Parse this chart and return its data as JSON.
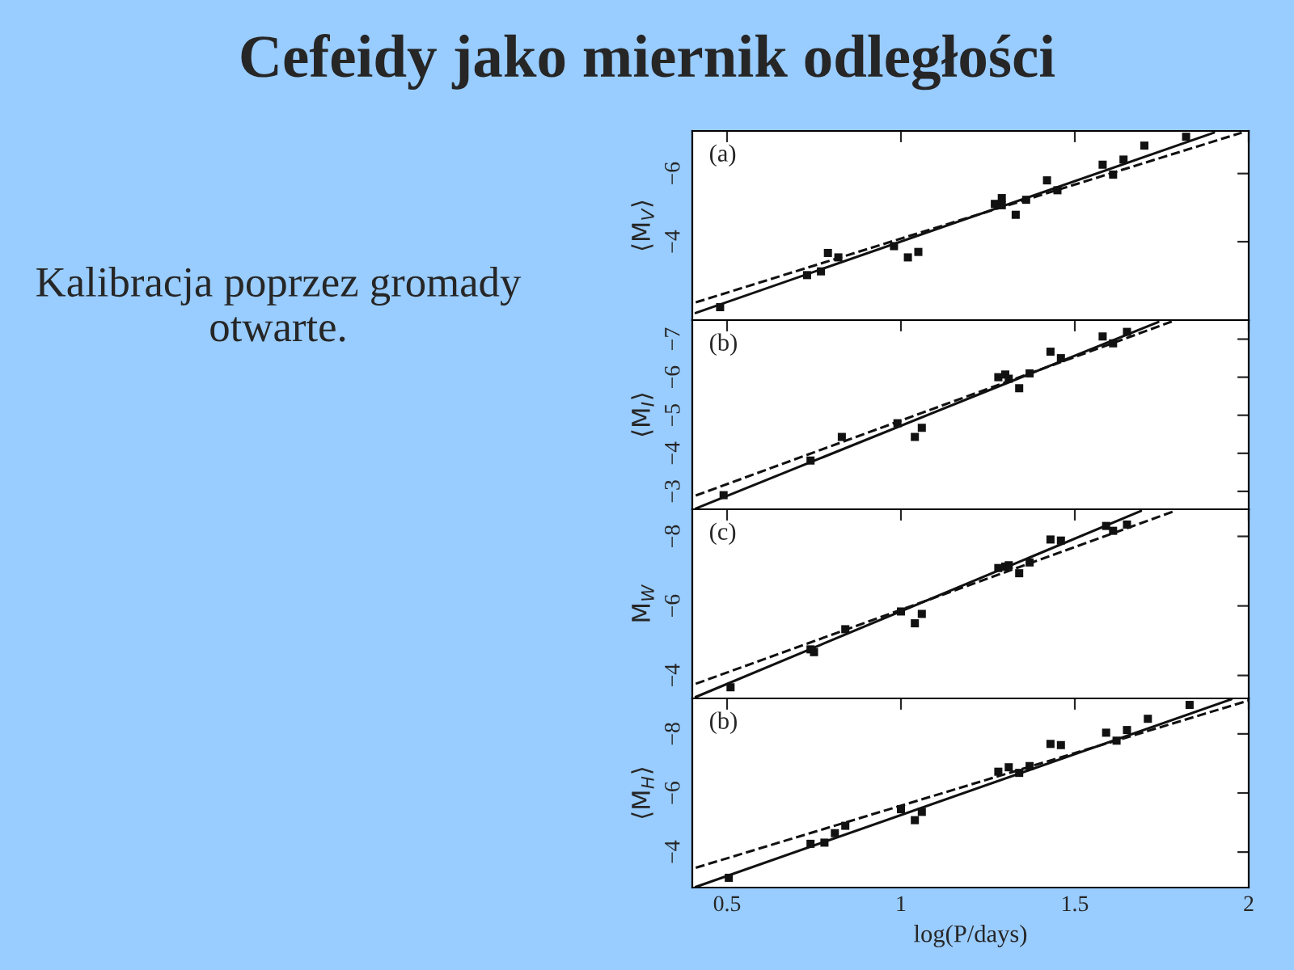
{
  "chart_data": [
    {
      "type": "scatter",
      "title": "Cefeidy jako miernik odległości",
      "annotations": [
        "Kalibracja poprzez gromady otwarte.",
        "(a)"
      ],
      "ylabel": "⟨M$_{V}$⟩",
      "xlim": [
        0.4,
        2.0
      ],
      "xticks": [
        0.5,
        1,
        1.5,
        2
      ],
      "ylim": [
        -1.7,
        -7.25
      ],
      "yticks": [
        -4,
        -6
      ],
      "tick_labels": "y",
      "grid": false,
      "series": [
        {
          "marker": "square",
          "color": "#111111",
          "x": [
            0.48,
            0.73,
            0.77,
            0.79,
            0.82,
            0.98,
            1.02,
            1.05,
            1.27,
            1.29,
            1.29,
            1.33,
            1.36,
            1.42,
            1.45,
            1.58,
            1.61,
            1.64,
            1.7,
            1.82
          ],
          "values": [
            -2.08,
            -3.02,
            -3.13,
            -3.67,
            -3.54,
            -3.87,
            -3.54,
            -3.7,
            -5.11,
            -5.28,
            -5.07,
            -4.79,
            -5.23,
            -5.8,
            -5.51,
            -6.26,
            -5.97,
            -6.41,
            -6.82,
            -7.08
          ]
        },
        {
          "type": "line",
          "marker": "none",
          "line_style": "solid",
          "color": "#111111",
          "x": [
            0.41,
            1.9
          ],
          "values": [
            -1.91,
            -7.2
          ]
        },
        {
          "type": "line",
          "marker": "none",
          "line_style": "dashed",
          "color": "#111111",
          "x": [
            0.41,
            1.98
          ],
          "values": [
            -2.22,
            -7.2
          ]
        }
      ]
    },
    {
      "type": "scatter",
      "annotations": [
        "(b)"
      ],
      "ylabel": "⟨M$_{I}$⟩",
      "xlim": [
        0.4,
        2.0
      ],
      "xticks": [
        0.5,
        1,
        1.5,
        2
      ],
      "ylim": [
        -2.53,
        -7.5
      ],
      "yticks": [
        -3,
        -4,
        -5,
        -6,
        -7
      ],
      "tick_labels": "y",
      "grid": false,
      "series": [
        {
          "marker": "square",
          "color": "#111111",
          "x": [
            0.49,
            0.74,
            0.83,
            0.99,
            1.04,
            1.06,
            1.28,
            1.3,
            1.31,
            1.34,
            1.37,
            1.43,
            1.46,
            1.58,
            1.61,
            1.65
          ],
          "values": [
            -2.9,
            -3.81,
            -4.43,
            -4.79,
            -4.43,
            -4.67,
            -6.0,
            -6.07,
            -5.96,
            -5.71,
            -6.1,
            -6.67,
            -6.5,
            -7.07,
            -6.89,
            -7.19
          ]
        },
        {
          "type": "line",
          "marker": "none",
          "line_style": "solid",
          "color": "#111111",
          "x": [
            0.41,
            1.74
          ],
          "values": [
            -2.55,
            -7.45
          ]
        },
        {
          "type": "line",
          "marker": "none",
          "line_style": "dashed",
          "color": "#111111",
          "x": [
            0.41,
            1.79
          ],
          "values": [
            -2.89,
            -7.5
          ]
        }
      ]
    },
    {
      "type": "scatter",
      "annotations": [
        "(c)"
      ],
      "ylabel": "M$_{W}$",
      "xlim": [
        0.4,
        2.0
      ],
      "xticks": [
        0.5,
        1,
        1.5,
        2
      ],
      "ylim": [
        -3.34,
        -8.78
      ],
      "yticks": [
        -4,
        -6,
        -8
      ],
      "tick_labels": "y",
      "grid": false,
      "series": [
        {
          "marker": "square",
          "color": "#111111",
          "x": [
            0.51,
            0.74,
            0.75,
            0.84,
            1.0,
            1.04,
            1.06,
            1.28,
            1.3,
            1.31,
            1.34,
            1.37,
            1.43,
            1.46,
            1.59,
            1.61,
            1.65
          ],
          "values": [
            -3.66,
            -4.75,
            -4.67,
            -5.33,
            -5.84,
            -5.5,
            -5.77,
            -7.09,
            -7.13,
            -7.17,
            -6.94,
            -7.25,
            -7.91,
            -7.88,
            -8.3,
            -8.16,
            -8.34
          ]
        },
        {
          "type": "line",
          "marker": "none",
          "line_style": "solid",
          "color": "#111111",
          "x": [
            0.41,
            1.69
          ],
          "values": [
            -3.38,
            -8.73
          ]
        },
        {
          "type": "line",
          "marker": "none",
          "line_style": "dashed",
          "color": "#111111",
          "x": [
            0.41,
            1.79
          ],
          "values": [
            -3.76,
            -8.74
          ]
        }
      ]
    },
    {
      "type": "scatter",
      "annotations": [
        "(b)"
      ],
      "ylabel": "⟨M$_{H}$⟩",
      "xlabel": "log(P/days)",
      "xlim": [
        0.4,
        2.0
      ],
      "xticks": [
        0.5,
        1,
        1.5,
        2
      ],
      "ylim": [
        -2.8,
        -9.2
      ],
      "yticks": [
        -4,
        -6,
        -8
      ],
      "grid": false,
      "series": [
        {
          "marker": "square",
          "color": "#111111",
          "x": [
            0.505,
            0.74,
            0.78,
            0.81,
            0.84,
            1.0,
            1.04,
            1.06,
            1.28,
            1.31,
            1.34,
            1.37,
            1.43,
            1.46,
            1.59,
            1.62,
            1.65,
            1.71,
            1.83
          ],
          "values": [
            -3.13,
            -4.28,
            -4.32,
            -4.64,
            -4.89,
            -5.45,
            -5.08,
            -5.36,
            -6.72,
            -6.87,
            -6.68,
            -6.91,
            -7.66,
            -7.62,
            -8.04,
            -7.77,
            -8.13,
            -8.51,
            -8.98
          ]
        },
        {
          "type": "line",
          "marker": "none",
          "line_style": "solid",
          "color": "#111111",
          "x": [
            0.41,
            1.95
          ],
          "values": [
            -2.82,
            -9.17
          ]
        },
        {
          "type": "line",
          "marker": "none",
          "line_style": "dashed",
          "color": "#111111",
          "x": [
            0.41,
            2.0
          ],
          "values": [
            -3.47,
            -9.13
          ]
        }
      ]
    }
  ]
}
